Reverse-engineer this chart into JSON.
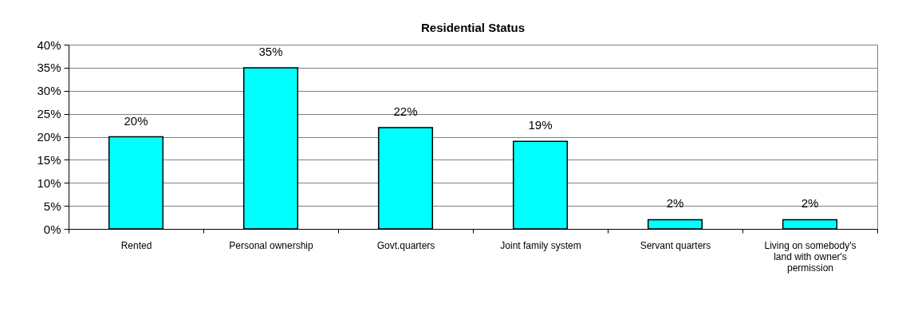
{
  "chart_data": {
    "type": "bar",
    "title": "Residential Status",
    "categories": [
      "Rented",
      "Personal ownership",
      "Govt.quarters",
      "Joint family system",
      "Servant quarters",
      "Living on somebody's land with owner's permission"
    ],
    "values": [
      20,
      35,
      22,
      19,
      2,
      2
    ],
    "value_labels": [
      "20%",
      "35%",
      "22%",
      "19%",
      "2%",
      "2%"
    ],
    "color": "#00ffff",
    "ylim": [
      0,
      40
    ],
    "yticks": [
      {
        "value": 0,
        "label": "0%"
      },
      {
        "value": 5,
        "label": "5%"
      },
      {
        "value": 10,
        "label": "10%"
      },
      {
        "value": 15,
        "label": "15%"
      },
      {
        "value": 20,
        "label": "20%"
      },
      {
        "value": 25,
        "label": "25%"
      },
      {
        "value": 30,
        "label": "30%"
      },
      {
        "value": 35,
        "label": "35%"
      },
      {
        "value": 40,
        "label": "40%"
      }
    ],
    "grid": "y"
  }
}
